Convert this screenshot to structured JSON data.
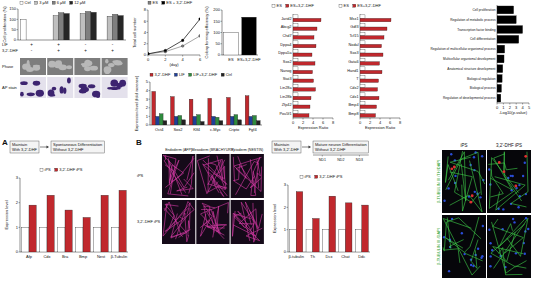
{
  "chart_data": [
    {
      "type": "bar",
      "y_label": "Cell proliferation (%)",
      "categories": [
        null,
        null,
        null,
        null
      ],
      "series": [
        {
          "name": "Ctrl",
          "color": "#ffffff",
          "values": [
            100,
            null,
            null,
            null
          ]
        },
        {
          "name": "3 μM",
          "color": "#bfbfbf",
          "values": [
            null,
            118,
            128,
            115
          ]
        },
        {
          "name": "6 μM",
          "color": "#7f7f7f",
          "values": [
            null,
            132,
            138,
            124
          ]
        },
        {
          "name": "12 μM",
          "color": "#262626",
          "values": [
            null,
            128,
            134,
            118
          ]
        }
      ],
      "ylim": [
        0,
        150
      ],
      "yticks": [
        0,
        50,
        100,
        150
      ],
      "legend": "top",
      "annotations": [
        {
          "label": "LIF",
          "signs": [
            "+",
            "+",
            "-",
            "-"
          ]
        },
        {
          "label": "3,2'-DHF",
          "signs": [
            "-",
            "+",
            "+",
            "+"
          ]
        }
      ]
    },
    {
      "type": "line",
      "y_label": "Total cell number",
      "x_label": "(day)",
      "x": [
        0,
        2,
        4,
        6
      ],
      "xlim": [
        0,
        6
      ],
      "xticks": [
        0,
        2,
        4,
        6
      ],
      "ylim": [
        0,
        8
      ],
      "yticks": [
        0,
        2,
        4,
        6,
        8
      ],
      "legend": "top",
      "series": [
        {
          "name": "ES",
          "color": "#808080",
          "marker": "circle",
          "values": [
            0.2,
            0.6,
            1.6,
            3.4
          ]
        },
        {
          "name": "ES + 3,2'-DHF",
          "color": "#000000",
          "marker": "circle",
          "values": [
            0.2,
            0.8,
            2.6,
            6.4
          ]
        }
      ]
    },
    {
      "type": "bar",
      "y_label": "Colony forming efficiency (%)",
      "categories": [
        "ES",
        "ES+3,2'-DHF"
      ],
      "values": [
        100,
        168
      ],
      "colors": [
        "#ffffff",
        "#000000"
      ],
      "ylim": [
        0,
        200
      ],
      "yticks": [
        0,
        50,
        100,
        150,
        200
      ]
    },
    {
      "type": "bar",
      "y_label": "Expression level (fold increase)",
      "categories": [
        "Oct4",
        "Sox2",
        "Klf4",
        "c-Myc",
        "Cripto",
        "Fgf4"
      ],
      "series": [
        {
          "name": "3,2'-DHF",
          "color": "#c0282d",
          "values": [
            3.9,
            3.3,
            3.0,
            3.1,
            3.2,
            3.4
          ]
        },
        {
          "name": "LIF",
          "color": "#1f3f99",
          "values": [
            1.0,
            1.0,
            1.0,
            1.0,
            1.0,
            1.0
          ]
        },
        {
          "name": "LIF+3,2'-DHF",
          "color": "#2e8b3e",
          "values": [
            1.3,
            1.1,
            1.2,
            0.9,
            1.2,
            1.1
          ]
        },
        {
          "name": "Ctrl",
          "color": "#222222",
          "values": [
            0.5,
            0.6,
            0.4,
            0.5,
            0.6,
            0.5
          ]
        }
      ],
      "ylim": [
        0,
        5
      ],
      "yticks": [
        0,
        1,
        2,
        3,
        4,
        5
      ],
      "legend": "top"
    },
    {
      "type": "bar",
      "orientation": "horizontal",
      "x_label": "Expression Ratio",
      "categories": [
        "Jarid2",
        "Abcg2",
        "Chd7",
        "Dppa4",
        "Dppa5a",
        "Sox2",
        "Nanog",
        "Stat3",
        "Lin28a",
        "Lin28b",
        "Zfp42",
        "Pou5f1"
      ],
      "series": [
        {
          "name": "ES",
          "color": "#ffffff",
          "values": [
            1,
            1,
            1,
            1,
            1,
            1,
            1,
            1,
            1,
            1,
            1,
            1
          ]
        },
        {
          "name": "ES+3,2'-DHF",
          "color": "#c0282d",
          "values": [
            5.6,
            4.8,
            4.2,
            4.6,
            3.8,
            4.4,
            3.9,
            4.1,
            4.5,
            3.6,
            3.4,
            3.2
          ]
        }
      ],
      "xlim": [
        0,
        8
      ],
      "xticks": [
        0,
        2,
        4,
        6,
        8
      ],
      "legend": "top"
    },
    {
      "type": "bar",
      "orientation": "horizontal",
      "x_label": "Expression Ratio",
      "categories": [
        "Msx1",
        "Gdf3",
        "Tcf15",
        "Nodal",
        "Sox3",
        "Gata6",
        "Hand1",
        "T",
        "Cdx2",
        "Cdx1",
        "Bmp4",
        "Bmp8"
      ],
      "series": [
        {
          "name": "ES",
          "color": "#ffffff",
          "values": [
            1,
            1,
            1,
            1,
            1,
            1,
            1,
            1,
            1,
            1,
            1,
            1
          ]
        },
        {
          "name": "ES+3,2'-DHF",
          "color": "#c0282d",
          "values": [
            6.2,
            5.4,
            4.8,
            4.3,
            4.6,
            3.9,
            4.4,
            3.7,
            3.5,
            3.8,
            3.3,
            3.1
          ]
        }
      ],
      "xlim": [
        0,
        8
      ],
      "xticks": [
        0,
        2,
        4,
        6,
        8
      ],
      "legend": "top"
    },
    {
      "type": "bar",
      "orientation": "horizontal",
      "x_label": "-Log10(p-value)",
      "categories": [
        "Cell proliferation",
        "Regulation of metabolic process",
        "Transcription factor binding",
        "Cell differentiation",
        "Regulation of multicellular organismal process",
        "Multicellular organismal development",
        "Anatomical structure development",
        "Biological regulation",
        "Biological process",
        "Regulation of developmental process"
      ],
      "values": [
        2.6,
        3.0,
        4.0,
        3.4,
        1.2,
        1.1,
        0.9,
        0.8,
        0.7,
        0.6
      ],
      "color": "#000000",
      "xlim": [
        0,
        5
      ],
      "xticks": [
        0,
        1,
        2,
        3,
        4,
        5
      ]
    },
    {
      "type": "bar",
      "y_label": "Expression level",
      "categories": [
        "Afp",
        "Cdx",
        "Bra",
        "Bmp",
        "Nest",
        "β-Tubulin"
      ],
      "series": [
        {
          "name": "iPS",
          "color": "#ffffff",
          "values": [
            1,
            1,
            1,
            1,
            1,
            1
          ]
        },
        {
          "name": "3,2'-DHF iPS",
          "color": "#c0282d",
          "values": [
            1.9,
            2.3,
            1.7,
            1.4,
            2.3,
            2.5
          ]
        }
      ],
      "ylim": [
        0,
        3
      ],
      "yticks": [
        0,
        1,
        2,
        3
      ],
      "legend": "top"
    },
    {
      "type": "bar",
      "y_label": "Expression level",
      "categories": [
        "β-tubulin",
        "Th",
        "Dcx",
        "Chat",
        "Ddc"
      ],
      "series": [
        {
          "name": "iPS",
          "color": "#ffffff",
          "values": [
            1,
            1,
            1,
            1,
            1
          ]
        },
        {
          "name": "3,2'-DHF iPS",
          "color": "#c0282d",
          "values": [
            2.7,
            1.5,
            2.5,
            2.2,
            2.1
          ]
        }
      ],
      "ylim": [
        0,
        3
      ],
      "yticks": [
        0,
        1,
        2,
        3
      ],
      "legend": "top"
    }
  ],
  "panel_labels": [
    "A",
    "B"
  ],
  "diagrams": [
    {
      "boxes": [
        [
          "Maintain",
          "With 3,2'-DHF"
        ],
        [
          "Spontaneous Differentiation",
          "Without 3,2'-DHF"
        ]
      ]
    },
    {
      "boxes": [
        [
          "Maintain",
          "With 3,2'-DHF"
        ],
        [
          "Mature neuron Differentiation",
          "Without 3,2'-DHF"
        ]
      ],
      "stages": [
        "ND1",
        "ND2",
        "ND3"
      ]
    }
  ],
  "images": [
    {
      "row_labels": [
        "Phase",
        "AP stain"
      ]
    },
    {
      "column_labels": [
        "Endoderm (AFP)",
        "Mesoderm (BRACHYURY)",
        "Ectoderm (NESTIN)"
      ],
      "row_labels": [
        "iPS",
        "3,2'-DHF iPS"
      ]
    },
    {
      "column_labels": [
        "iPS",
        "3,2'-DHF iPS"
      ],
      "row_labels": [
        "β-TUBULIN III /TH/DAPI",
        "β-TUBULIN III /DAPI"
      ]
    }
  ]
}
